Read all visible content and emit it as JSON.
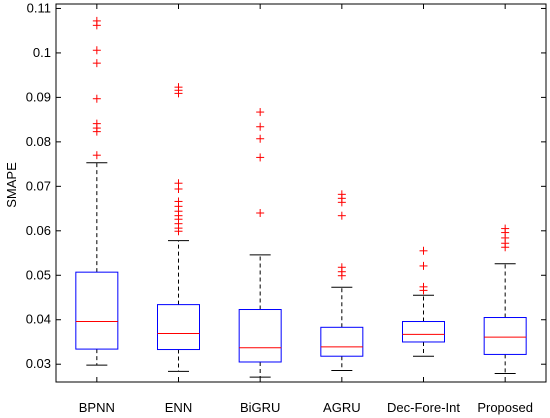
{
  "chart_data": {
    "type": "box",
    "title": "",
    "xlabel": "",
    "ylabel": "SMAPE",
    "ylim": [
      0.026,
      0.111
    ],
    "yticks": [
      0.03,
      0.04,
      0.05,
      0.06,
      0.07,
      0.08,
      0.09,
      0.1,
      0.11
    ],
    "ytick_labels": [
      "0.03",
      "0.04",
      "0.05",
      "0.06",
      "0.07",
      "0.08",
      "0.09",
      "0.1",
      "0.11"
    ],
    "grid": false,
    "colors": {
      "box": "#0000ff",
      "median": "#ff0000",
      "whisker": "#000000",
      "outlier": "#ff0000",
      "axis": "#000000"
    },
    "boxes": [
      {
        "category": "BPNN",
        "whisker_low": 0.0298,
        "q1": 0.0334,
        "median": 0.0396,
        "q3": 0.0507,
        "whisker_high": 0.0753,
        "outliers": [
          0.1072,
          0.1062,
          0.1006,
          0.0977,
          0.0897,
          0.0841,
          0.0831,
          0.0823,
          0.077
        ]
      },
      {
        "category": "ENN",
        "whisker_low": 0.0284,
        "q1": 0.0333,
        "median": 0.0369,
        "q3": 0.0434,
        "whisker_high": 0.0578,
        "outliers": [
          0.0923,
          0.0916,
          0.0909,
          0.0707,
          0.0694,
          0.0666,
          0.0655,
          0.0644,
          0.0634,
          0.0626,
          0.0616,
          0.0606,
          0.0599
        ]
      },
      {
        "category": "BiGRU",
        "whisker_low": 0.0271,
        "q1": 0.0305,
        "median": 0.0337,
        "q3": 0.0423,
        "whisker_high": 0.0546,
        "outliers": [
          0.0867,
          0.0834,
          0.0807,
          0.0765,
          0.064
        ]
      },
      {
        "category": "AGRU",
        "whisker_low": 0.0286,
        "q1": 0.0318,
        "median": 0.0339,
        "q3": 0.0383,
        "whisker_high": 0.0473,
        "outliers": [
          0.0682,
          0.0673,
          0.0664,
          0.0634,
          0.0518,
          0.0508,
          0.0499
        ]
      },
      {
        "category": "Dec-Fore-Int",
        "whisker_low": 0.0318,
        "q1": 0.035,
        "median": 0.0367,
        "q3": 0.0396,
        "whisker_high": 0.0455,
        "outliers": [
          0.0555,
          0.0521,
          0.0474,
          0.0466
        ]
      },
      {
        "category": "Proposed",
        "whisker_low": 0.0279,
        "q1": 0.0322,
        "median": 0.0361,
        "q3": 0.0405,
        "whisker_high": 0.0526,
        "outliers": [
          0.0605,
          0.0596,
          0.0584,
          0.0572,
          0.0563
        ]
      }
    ]
  }
}
